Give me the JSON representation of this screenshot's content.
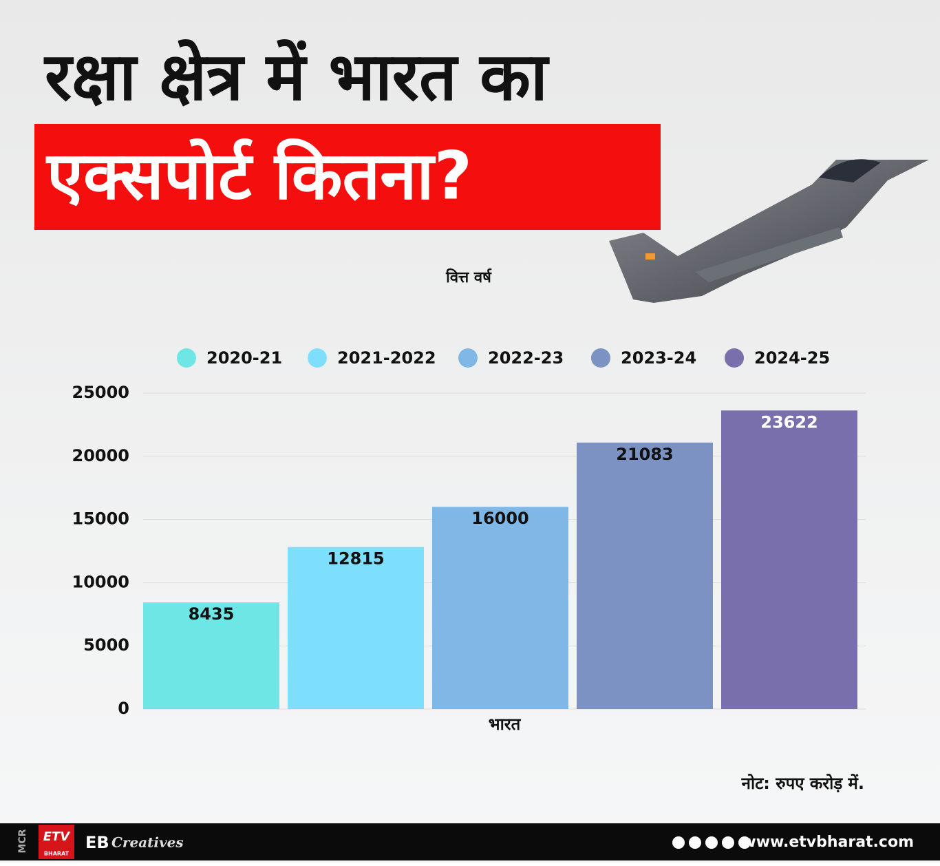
{
  "chart_data": {
    "type": "bar",
    "title": "रक्षा क्षेत्र में भारत का",
    "subtitle": "एक्सपोर्ट कितना?",
    "legend_title": "वित्त वर्ष",
    "categories": [
      "भारत"
    ],
    "series": [
      {
        "name": "2020-21",
        "color": "#6ee6e6",
        "values": [
          8435
        ]
      },
      {
        "name": "2021-2022",
        "color": "#7ddffc",
        "values": [
          12815
        ]
      },
      {
        "name": "2022-23",
        "color": "#7fb8e6",
        "values": [
          16000
        ]
      },
      {
        "name": "2023-24",
        "color": "#7b92c2",
        "values": [
          21083
        ]
      },
      {
        "name": "2024-25",
        "color": "#7a6fad",
        "values": [
          23622
        ]
      }
    ],
    "ylim": [
      0,
      25000
    ],
    "yticks": [
      0,
      5000,
      10000,
      15000,
      20000,
      25000
    ],
    "grid": true,
    "legend": "top",
    "note": "नोट: रुपए करोड़ में."
  },
  "footer": {
    "mcr": "MCR",
    "logo": "ETV",
    "logo_sub": "BHARAT",
    "brand": "EB",
    "brand_script": "Creatives",
    "website": "www.etvbharat.com"
  }
}
